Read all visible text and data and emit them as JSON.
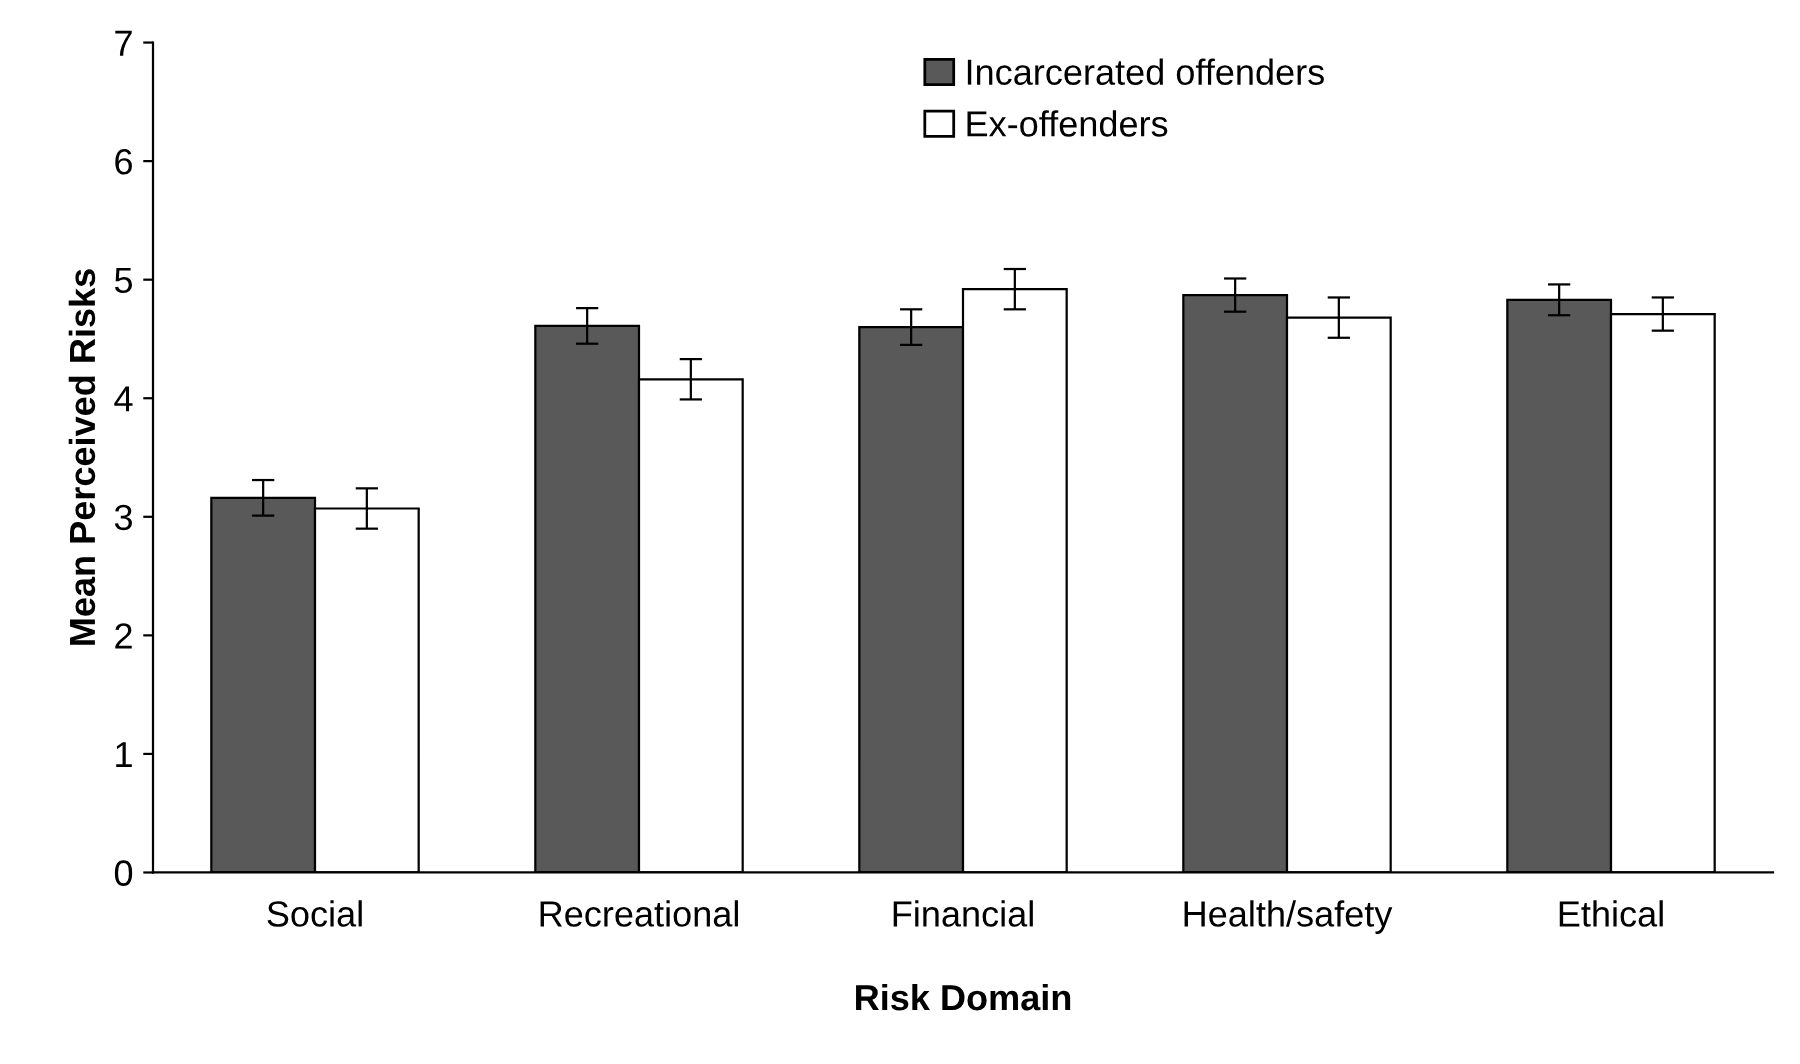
{
  "chart_data": {
    "type": "bar",
    "xlabel": "Risk Domain",
    "ylabel": "Mean Perceived Risks",
    "categories": [
      "Social",
      "Recreational",
      "Financial",
      "Health/safety",
      "Ethical"
    ],
    "series": [
      {
        "name": "Incarcerated offenders",
        "color": "#595959",
        "values": [
          3.16,
          4.61,
          4.6,
          4.87,
          4.83
        ],
        "errors": [
          0.15,
          0.15,
          0.15,
          0.14,
          0.13
        ]
      },
      {
        "name": "Ex-offenders",
        "color": "#ffffff",
        "values": [
          3.07,
          4.16,
          4.92,
          4.68,
          4.71
        ],
        "errors": [
          0.17,
          0.17,
          0.17,
          0.17,
          0.14
        ]
      }
    ],
    "ylim": [
      0,
      7
    ],
    "yticks": [
      0,
      1,
      2,
      3,
      4,
      5,
      6,
      7
    ],
    "legend": "top"
  }
}
